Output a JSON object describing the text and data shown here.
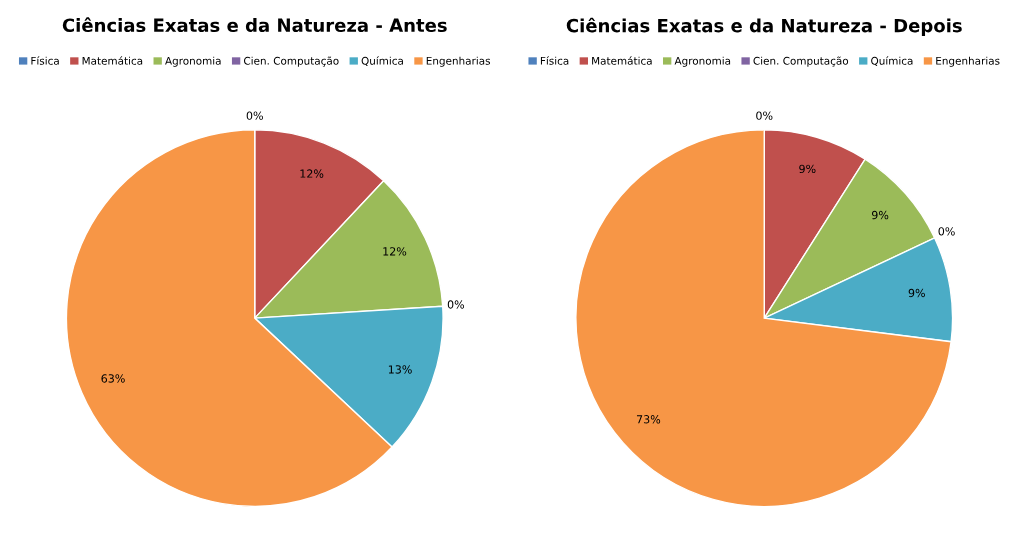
{
  "chart_data": [
    {
      "type": "pie",
      "title": "Ciências Exatas e da Natureza - Antes",
      "categories": [
        "Física",
        "Matemática",
        "Agronomia",
        "Cien. Computação",
        "Química",
        "Engenharias"
      ],
      "values": [
        0,
        12,
        12,
        0,
        13,
        63
      ],
      "value_labels": [
        "0%",
        "12%",
        "12%",
        "0%",
        "13%",
        "63%"
      ],
      "colors": [
        "#4f81bd",
        "#c0504d",
        "#9bbb59",
        "#8064a2",
        "#4bacc6",
        "#f79646"
      ],
      "legend": "top"
    },
    {
      "type": "pie",
      "title": "Ciências Exatas e da Natureza - Depois",
      "categories": [
        "Física",
        "Matemática",
        "Agronomia",
        "Cien. Computação",
        "Química",
        "Engenharias"
      ],
      "values": [
        0,
        9,
        9,
        0,
        9,
        73
      ],
      "value_labels": [
        "0%",
        "9%",
        "9%",
        "0%",
        "9%",
        "73%"
      ],
      "colors": [
        "#4f81bd",
        "#c0504d",
        "#9bbb59",
        "#8064a2",
        "#4bacc6",
        "#f79646"
      ],
      "legend": "top"
    }
  ]
}
